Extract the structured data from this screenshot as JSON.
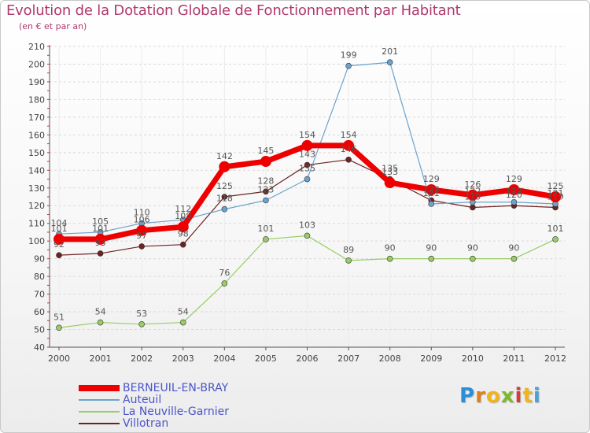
{
  "header": {
    "title": "Evolution de la Dotation Globale de Fonctionnement par Habitant",
    "subtitle": "(en € et par an)"
  },
  "logo": {
    "letters": [
      "P",
      "r",
      "o",
      "x",
      "i",
      "t",
      "i"
    ],
    "text": "Proxiti"
  },
  "colors": {
    "title": "#b0386c",
    "legend_text": "#4a55c8",
    "tick_text": "#444444",
    "grid": "#d9d9d9"
  },
  "chart_data": {
    "type": "line",
    "title": "Evolution de la Dotation Globale de Fonctionnement par Habitant",
    "subtitle": "(en € et par an)",
    "xlabel": "",
    "ylabel": "",
    "categories": [
      "2000",
      "2001",
      "2002",
      "2003",
      "2004",
      "2005",
      "2006",
      "2007",
      "2008",
      "2009",
      "2010",
      "2011",
      "2012"
    ],
    "ylim": [
      40,
      210
    ],
    "yticks": [
      40,
      50,
      60,
      70,
      80,
      90,
      100,
      110,
      120,
      130,
      140,
      150,
      160,
      170,
      180,
      190,
      200,
      210
    ],
    "grid": "horizontal dashed",
    "legend_position": "bottom-left",
    "series": [
      {
        "name": "BERNEUIL-EN-BRAY",
        "color": "#ee0000",
        "values": [
          101,
          101,
          106,
          108,
          142,
          145,
          154,
          154,
          133,
          129,
          126,
          129,
          125
        ]
      },
      {
        "name": "Auteuil",
        "color": "#6ca2cc",
        "values": [
          104,
          105,
          110,
          112,
          118,
          123,
          135,
          199,
          201,
          121,
          122,
          122,
          121
        ]
      },
      {
        "name": "La Neuville-Garnier",
        "color": "#99cc66",
        "values": [
          51,
          54,
          53,
          54,
          76,
          101,
          103,
          89,
          90,
          90,
          90,
          90,
          101
        ]
      },
      {
        "name": "Villotran",
        "color": "#6e2323",
        "values": [
          92,
          93,
          97,
          98,
          125,
          128,
          143,
          146,
          135,
          123,
          119,
          120,
          119
        ]
      }
    ]
  }
}
